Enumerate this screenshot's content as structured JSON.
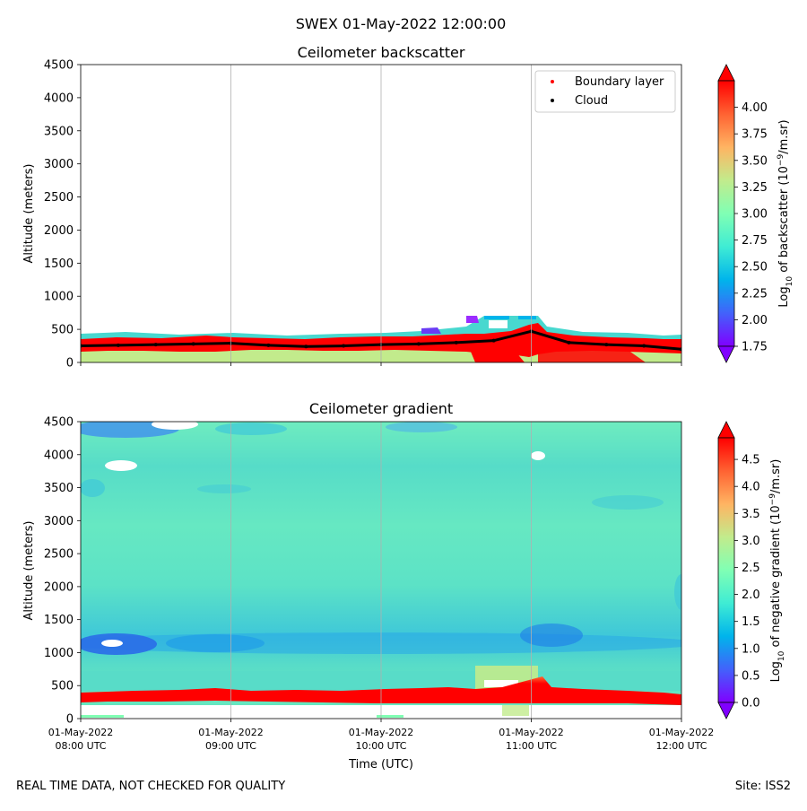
{
  "figure": {
    "suptitle": "SWEX 01-May-2022 12:00:00",
    "footer_left": "REAL TIME DATA, NOT CHECKED FOR QUALITY",
    "footer_right": "Site: ISS2"
  },
  "chart_data": [
    {
      "type": "heatmap",
      "title": "Ceilometer backscatter",
      "xlabel": "",
      "ylabel": "Altitude (meters)",
      "ylim": [
        0,
        4500
      ],
      "yticks": [
        0,
        500,
        1000,
        1500,
        2000,
        2500,
        3000,
        3500,
        4000,
        4500
      ],
      "xlim_hours_utc": [
        8,
        12
      ],
      "grid_x": true,
      "colorbar": {
        "label": "Log10 of backscatter (10^-9/m.sr)",
        "label_parts": [
          "Log",
          "10",
          " of backscatter (10",
          "−9",
          "/m.sr)"
        ],
        "range": [
          1.75,
          4.25
        ],
        "ticks": [
          "1.75",
          "2.00",
          "2.25",
          "2.50",
          "2.75",
          "3.00",
          "3.25",
          "3.50",
          "3.75",
          "4.00"
        ],
        "colormap": "rainbow"
      },
      "legend": {
        "position": "top-right",
        "entries": [
          {
            "label": "Boundary layer",
            "color": "#ff0000"
          },
          {
            "label": "Cloud",
            "color": "#000000"
          }
        ]
      },
      "cloud_base_m": {
        "times_utc": [
          8.0,
          8.25,
          8.5,
          8.75,
          9.0,
          9.25,
          9.5,
          9.75,
          10.0,
          10.25,
          10.5,
          10.75,
          11.0,
          11.25,
          11.5,
          11.75,
          12.0
        ],
        "values": [
          250,
          260,
          270,
          280,
          290,
          260,
          240,
          250,
          270,
          280,
          300,
          330,
          470,
          300,
          270,
          250,
          200
        ]
      }
    },
    {
      "type": "heatmap",
      "title": "Ceilometer gradient",
      "xlabel": "Time (UTC)",
      "ylabel": "Altitude (meters)",
      "ylim": [
        0,
        4500
      ],
      "yticks": [
        0,
        500,
        1000,
        1500,
        2000,
        2500,
        3000,
        3500,
        4000,
        4500
      ],
      "xlim_hours_utc": [
        8,
        12
      ],
      "xticks": [
        {
          "hour": 8,
          "date": "01-May-2022",
          "time": "08:00 UTC"
        },
        {
          "hour": 9,
          "date": "01-May-2022",
          "time": "09:00 UTC"
        },
        {
          "hour": 10,
          "date": "01-May-2022",
          "time": "10:00 UTC"
        },
        {
          "hour": 11,
          "date": "01-May-2022",
          "time": "11:00 UTC"
        },
        {
          "hour": 12,
          "date": "01-May-2022",
          "time": "12:00 UTC"
        }
      ],
      "grid_x": true,
      "colorbar": {
        "label": "Log10 of negative gradient (10^-9/m.sr)",
        "label_parts": [
          "Log",
          "10",
          " of negative gradient (10",
          "−9",
          "/m.sr)"
        ],
        "range": [
          0,
          4.9
        ],
        "ticks": [
          "0.0",
          "0.5",
          "1.0",
          "1.5",
          "2.0",
          "2.5",
          "3.0",
          "3.5",
          "4.0",
          "4.5"
        ],
        "colormap": "rainbow"
      },
      "layers": {
        "boundary_layer_m": [
          250,
          400
        ],
        "blue_band_m": [
          1000,
          1250
        ]
      }
    }
  ]
}
